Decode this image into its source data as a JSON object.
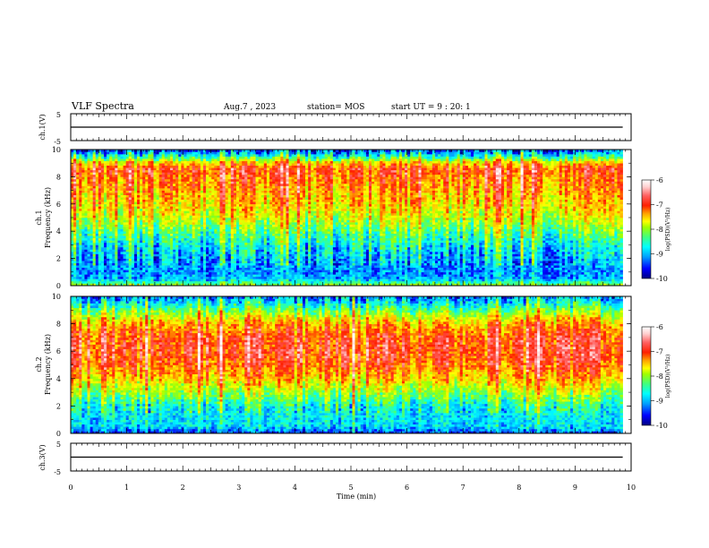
{
  "header": {
    "title": "VLF Spectra",
    "date": "Aug.7 , 2023",
    "station": "station= MOS",
    "start": "start  UT =  9 : 20: 1"
  },
  "colors": {
    "colormap": [
      "#000080",
      "#0000ff",
      "#00a0ff",
      "#00ffff",
      "#40ff80",
      "#a0ff00",
      "#ffff00",
      "#ffa000",
      "#ff2000",
      "#ff6060",
      "#ffd0d0",
      "#ffffff"
    ]
  },
  "chart_data": [
    {
      "type": "line",
      "name": "ch1-waveform",
      "ylabel": "ch.1(V)",
      "xlim": [
        0,
        10
      ],
      "ylim": [
        -5,
        5
      ],
      "yticks": [
        "5",
        "-5"
      ],
      "x": [
        0,
        9.85
      ],
      "y": [
        0,
        0
      ]
    },
    {
      "type": "heatmap",
      "name": "ch1-spectrogram",
      "ylabel": "ch.1\nFrequency (kHz)",
      "xlim": [
        0,
        10
      ],
      "ylim": [
        0,
        10
      ],
      "yticks": [
        "0",
        "2",
        "4",
        "6",
        "8",
        "10"
      ],
      "data_xmax": 9.85,
      "colorbar": {
        "label": "log(PSD)(V²/Hz)",
        "range": [
          -10,
          -6
        ],
        "ticks": [
          "-6",
          "-7",
          "-8",
          "-9",
          "-10"
        ]
      },
      "mean_log_psd_profile": {
        "freq_khz": [
          0,
          0.5,
          1,
          2,
          3,
          4,
          5,
          6,
          7,
          8,
          8.5,
          9,
          9.5,
          10
        ],
        "log_psd": [
          -8.2,
          -9.2,
          -9.3,
          -9.2,
          -8.9,
          -8.5,
          -8.0,
          -7.7,
          -7.5,
          -7.3,
          -7.1,
          -7.6,
          -8.8,
          -9.6
        ]
      }
    },
    {
      "type": "heatmap",
      "name": "ch2-spectrogram",
      "ylabel": "ch.2\nFrequency (kHz)",
      "xlim": [
        0,
        10
      ],
      "ylim": [
        0,
        10
      ],
      "yticks": [
        "0",
        "2",
        "4",
        "6",
        "8",
        "10"
      ],
      "data_xmax": 9.85,
      "colorbar": {
        "label": "log(PSD)(V²/Hz)",
        "range": [
          -10,
          -6
        ],
        "ticks": [
          "-6",
          "-7",
          "-8",
          "-9",
          "-10"
        ]
      },
      "mean_log_psd_profile": {
        "freq_khz": [
          0,
          0.5,
          1,
          2,
          3,
          4,
          5,
          6,
          7,
          8,
          8.5,
          9,
          9.5,
          10
        ],
        "log_psd": [
          -9.6,
          -9.0,
          -9.0,
          -8.8,
          -8.2,
          -7.6,
          -7.2,
          -7.0,
          -7.1,
          -7.5,
          -7.9,
          -8.4,
          -8.9,
          -9.3
        ]
      }
    },
    {
      "type": "line",
      "name": "ch3-waveform",
      "ylabel": "ch.3(V)",
      "xlabel": "Time  (min)",
      "xlim": [
        0,
        10
      ],
      "ylim": [
        -5,
        5
      ],
      "xticks": [
        "0",
        "1",
        "2",
        "3",
        "4",
        "5",
        "6",
        "7",
        "8",
        "9",
        "10"
      ],
      "yticks": [
        "5",
        "-5"
      ],
      "x": [
        0,
        9.85
      ],
      "y": [
        0,
        0
      ]
    }
  ]
}
